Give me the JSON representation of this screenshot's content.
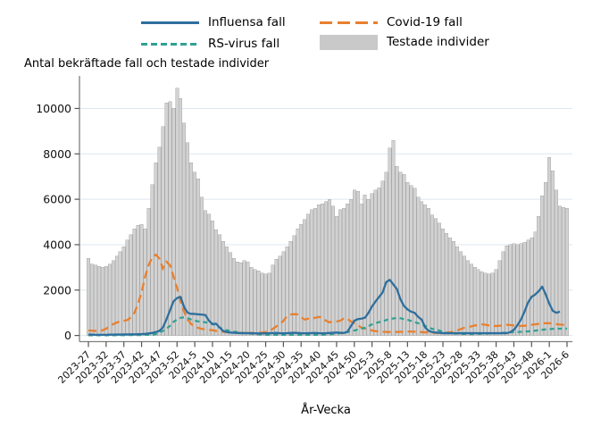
{
  "title": "Antal bekräftade fall och testade individer",
  "x_axis_title": "År-Vecka",
  "colors": {
    "influensa": "#2e6f9e",
    "covid": "#e8802f",
    "rs": "#2fa193",
    "tested_fill": "#d2d2d2",
    "tested_edge": "#a9a9a9",
    "legend_box": "#c9c9c9",
    "gridline": "#dce7f0",
    "axis": "#808080",
    "text": "#111111"
  },
  "legend": {
    "items": [
      {
        "label": "Influensa fall",
        "swatch": "solid-line"
      },
      {
        "label": "Covid-19 fall",
        "swatch": "long-dash-line"
      },
      {
        "label": "RS-virus fall",
        "swatch": "short-dash-line"
      },
      {
        "label": "Testade individer",
        "swatch": "filled-box"
      }
    ]
  },
  "chart_data": {
    "type": "bar+line",
    "title": "Antal bekräftade fall och testade individer",
    "xlabel": "År-Vecka",
    "x_unit": "weekly (year-week), 2023-27 through 2026-6",
    "n_points": 136,
    "tick_positions": [
      0,
      5,
      10,
      15,
      20,
      25,
      30,
      35,
      40,
      45,
      50,
      55,
      60,
      65,
      70,
      75,
      80,
      85,
      90,
      95,
      100,
      105,
      110,
      115,
      120,
      125,
      130,
      135
    ],
    "tick_labels": [
      "2023-27",
      "2023-32",
      "2023-37",
      "2023-42",
      "2023-47",
      "2023-52",
      "2024-5",
      "2024-10",
      "2024-15",
      "2024-20",
      "2024-25",
      "2024-30",
      "2024-35",
      "2024-40",
      "2024-45",
      "2024-50",
      "2025-3",
      "2025-8",
      "2025-13",
      "2025-18",
      "2025-23",
      "2025-28",
      "2025-33",
      "2025-38",
      "2025-43",
      "2025-48",
      "2026-1",
      "2026-6"
    ],
    "yticks": [
      0,
      2000,
      4000,
      6000,
      8000,
      10000
    ],
    "ytick_labels": [
      "0",
      "2000",
      "4000",
      "6000",
      "8000",
      "10000"
    ],
    "ylim": [
      0,
      11200
    ],
    "grid": "horizontal",
    "legend_position": "top",
    "series": [
      {
        "name": "Testade individer",
        "type": "bar",
        "values": [
          3400,
          3150,
          3100,
          3050,
          3000,
          3050,
          3150,
          3300,
          3500,
          3700,
          3900,
          4200,
          4450,
          4700,
          4850,
          4900,
          4700,
          5600,
          6650,
          7600,
          8300,
          9200,
          10250,
          10300,
          10000,
          10900,
          10450,
          9350,
          8500,
          7600,
          7200,
          6900,
          6100,
          5500,
          5350,
          5050,
          4650,
          4450,
          4150,
          3900,
          3650,
          3400,
          3250,
          3200,
          3300,
          3250,
          3000,
          2900,
          2850,
          2750,
          2700,
          2750,
          3100,
          3350,
          3500,
          3700,
          3900,
          4150,
          4400,
          4700,
          4900,
          5100,
          5350,
          5550,
          5600,
          5750,
          5800,
          5900,
          6000,
          5700,
          5250,
          5550,
          5600,
          5800,
          6000,
          6400,
          6350,
          5800,
          6200,
          6000,
          6250,
          6400,
          6500,
          6800,
          7200,
          8250,
          8600,
          7450,
          7200,
          7100,
          6750,
          6600,
          6480,
          6100,
          5900,
          5750,
          5600,
          5300,
          5150,
          4950,
          4700,
          4500,
          4300,
          4150,
          3900,
          3700,
          3500,
          3300,
          3150,
          3000,
          2900,
          2800,
          2750,
          2700,
          2750,
          2900,
          3300,
          3700,
          3950,
          4000,
          4050,
          4000,
          4050,
          4100,
          4200,
          4300,
          4550,
          5250,
          6150,
          6750,
          7840,
          7250,
          6400,
          5700,
          5650,
          5600
        ]
      },
      {
        "name": "Covid-19 fall",
        "type": "line",
        "dash": "long",
        "values": [
          220,
          210,
          200,
          210,
          230,
          300,
          400,
          500,
          570,
          620,
          650,
          680,
          800,
          1000,
          1400,
          1900,
          2600,
          3100,
          3440,
          3560,
          3400,
          2950,
          3250,
          3100,
          2600,
          2100,
          1500,
          1050,
          700,
          500,
          400,
          330,
          290,
          270,
          250,
          230,
          200,
          180,
          160,
          150,
          140,
          130,
          120,
          115,
          110,
          110,
          110,
          115,
          120,
          130,
          150,
          200,
          290,
          400,
          490,
          645,
          850,
          920,
          940,
          930,
          800,
          700,
          740,
          740,
          780,
          815,
          800,
          650,
          580,
          615,
          615,
          650,
          740,
          740,
          620,
          540,
          450,
          345,
          300,
          260,
          220,
          190,
          175,
          160,
          155,
          150,
          150,
          155,
          160,
          165,
          170,
          170,
          165,
          160,
          150,
          140,
          130,
          120,
          115,
          110,
          110,
          120,
          140,
          170,
          220,
          280,
          340,
          360,
          400,
          440,
          470,
          490,
          470,
          440,
          420,
          420,
          430,
          450,
          470,
          460,
          440,
          430,
          420,
          430,
          450,
          470,
          490,
          510,
          530,
          540,
          540,
          520,
          500,
          480,
          470,
          460
        ]
      },
      {
        "name": "RS-virus fall",
        "type": "line",
        "dash": "short",
        "values": [
          10,
          10,
          10,
          10,
          10,
          10,
          10,
          10,
          15,
          15,
          15,
          15,
          20,
          20,
          20,
          20,
          25,
          30,
          30,
          60,
          120,
          200,
          300,
          420,
          600,
          700,
          780,
          800,
          760,
          700,
          650,
          620,
          600,
          580,
          550,
          500,
          450,
          350,
          280,
          230,
          200,
          170,
          150,
          130,
          110,
          100,
          80,
          60,
          50,
          40,
          30,
          30,
          30,
          30,
          30,
          30,
          30,
          30,
          30,
          30,
          30,
          30,
          30,
          30,
          30,
          30,
          30,
          40,
          50,
          60,
          80,
          100,
          120,
          150,
          190,
          220,
          260,
          300,
          340,
          410,
          490,
          540,
          590,
          620,
          680,
          730,
          750,
          770,
          760,
          720,
          690,
          640,
          590,
          540,
          480,
          420,
          345,
          290,
          250,
          220,
          150,
          120,
          100,
          90,
          80,
          70,
          65,
          60,
          60,
          65,
          70,
          75,
          80,
          85,
          90,
          100,
          110,
          120,
          130,
          140,
          150,
          155,
          160,
          170,
          180,
          190,
          210,
          230,
          250,
          270,
          280,
          290,
          295,
          300,
          300,
          300
        ]
      },
      {
        "name": "Influensa fall",
        "type": "line",
        "dash": "solid",
        "values": [
          40,
          35,
          30,
          30,
          30,
          30,
          35,
          35,
          40,
          40,
          45,
          45,
          50,
          50,
          55,
          60,
          70,
          90,
          110,
          150,
          200,
          350,
          700,
          1100,
          1500,
          1650,
          1700,
          1250,
          1000,
          950,
          950,
          930,
          920,
          900,
          650,
          500,
          520,
          350,
          200,
          150,
          130,
          120,
          110,
          100,
          100,
          100,
          100,
          95,
          90,
          90,
          95,
          100,
          105,
          110,
          100,
          95,
          100,
          110,
          120,
          110,
          100,
          95,
          100,
          105,
          110,
          100,
          95,
          100,
          110,
          120,
          130,
          120,
          110,
          150,
          400,
          650,
          720,
          740,
          780,
          1000,
          1280,
          1500,
          1700,
          1900,
          2350,
          2450,
          2250,
          2050,
          1600,
          1300,
          1150,
          1050,
          1000,
          820,
          700,
          350,
          200,
          150,
          130,
          120,
          100,
          100,
          100,
          100,
          100,
          100,
          100,
          100,
          100,
          100,
          100,
          100,
          100,
          100,
          100,
          100,
          100,
          100,
          100,
          150,
          250,
          450,
          700,
          1050,
          1450,
          1700,
          1800,
          1950,
          2150,
          1800,
          1400,
          1080,
          1000,
          1050
        ]
      }
    ]
  }
}
